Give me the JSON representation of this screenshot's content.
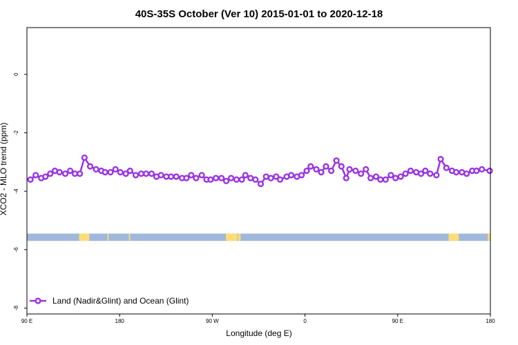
{
  "chart_data": {
    "type": "line",
    "title": "40S-35S October (Ver 10)   2015-01-01 to 2020-12-18",
    "xlabel": "Longitude (deg E)",
    "ylabel": "XCO2 - MLO trend (ppm)",
    "xlim": [
      90,
      450
    ],
    "ylim": [
      -8.2,
      1.6
    ],
    "x_ticks": [
      {
        "value": 90,
        "label": "90 E"
      },
      {
        "value": 162,
        "label": "180"
      },
      {
        "value": 234,
        "label": "90 W"
      },
      {
        "value": 306,
        "label": "0"
      },
      {
        "value": 378,
        "label": "90 E"
      },
      {
        "value": 450,
        "label": "180"
      }
    ],
    "y_ticks": [
      0,
      -2,
      -4,
      -6,
      -8
    ],
    "grid": false,
    "legend_position": "bottom-left",
    "series": [
      {
        "name": "Land (Nadir&Glint) and Ocean (Glint)",
        "color": "#9932e6",
        "x": [
          92.7,
          96.8,
          101.1,
          104.4,
          108.1,
          111.7,
          115.3,
          119.8,
          123.6,
          127.3,
          131.1,
          134.7,
          139.1,
          143.7,
          147.8,
          150.7,
          154.9,
          158.8,
          162.6,
          166.8,
          170.1,
          174.5,
          178.8,
          182.6,
          186.8,
          190.6,
          194.1,
          198.3,
          201.9,
          206.0,
          210.5,
          213.9,
          217.6,
          221.4,
          225.8,
          229.5,
          232.7,
          236.8,
          241.1,
          244.8,
          248.6,
          252.8,
          256.9,
          259.7,
          263.7,
          267.5,
          271.6,
          275.8,
          279.5,
          283.6,
          286.7,
          291.8,
          295.3,
          299.7,
          303.3,
          307.3,
          310.4,
          314.8,
          318.6,
          322.3,
          326.4,
          330.4,
          334.3,
          338.0,
          340.6,
          345.3,
          349.5,
          353.3,
          357.0,
          361.2,
          364.6,
          368.6,
          372.7,
          376.3,
          380.3,
          384.1,
          388.0,
          392.4,
          396.1,
          399.5,
          403.2,
          408.1,
          411.4,
          415.8,
          420.2,
          423.5,
          427.9,
          431.6,
          435.9,
          439.2,
          443.4,
          449.5
        ],
        "y": [
          -3.6,
          -3.45,
          -3.55,
          -3.5,
          -3.4,
          -3.3,
          -3.35,
          -3.4,
          -3.3,
          -3.4,
          -3.4,
          -2.85,
          -3.15,
          -3.25,
          -3.3,
          -3.35,
          -3.35,
          -3.25,
          -3.35,
          -3.4,
          -3.3,
          -3.45,
          -3.4,
          -3.4,
          -3.4,
          -3.5,
          -3.45,
          -3.5,
          -3.5,
          -3.5,
          -3.55,
          -3.55,
          -3.45,
          -3.55,
          -3.45,
          -3.6,
          -3.6,
          -3.55,
          -3.55,
          -3.65,
          -3.55,
          -3.6,
          -3.6,
          -3.45,
          -3.55,
          -3.6,
          -3.75,
          -3.5,
          -3.55,
          -3.5,
          -3.6,
          -3.5,
          -3.45,
          -3.5,
          -3.45,
          -3.3,
          -3.15,
          -3.25,
          -3.35,
          -3.15,
          -3.3,
          -2.95,
          -3.15,
          -3.55,
          -3.25,
          -3.3,
          -3.4,
          -3.25,
          -3.55,
          -3.5,
          -3.6,
          -3.6,
          -3.45,
          -3.55,
          -3.5,
          -3.4,
          -3.3,
          -3.35,
          -3.4,
          -3.3,
          -3.4,
          -3.45,
          -2.9,
          -3.2,
          -3.3,
          -3.35,
          -3.35,
          -3.4,
          -3.3,
          -3.3,
          -3.25,
          -3.3
        ]
      }
    ],
    "land_band": {
      "y_top": -5.45,
      "y_bottom": -5.7,
      "ocean_color": "#9fb8dc",
      "land_color": "#ffdc78",
      "land_ranges": [
        [
          130.5,
          138.5
        ],
        [
          152.5,
          153.5
        ],
        [
          169.2,
          170.2
        ],
        [
          244.5,
          253.5
        ],
        [
          254,
          256
        ],
        [
          417.5,
          425.5
        ],
        [
          448,
          450
        ]
      ]
    }
  }
}
